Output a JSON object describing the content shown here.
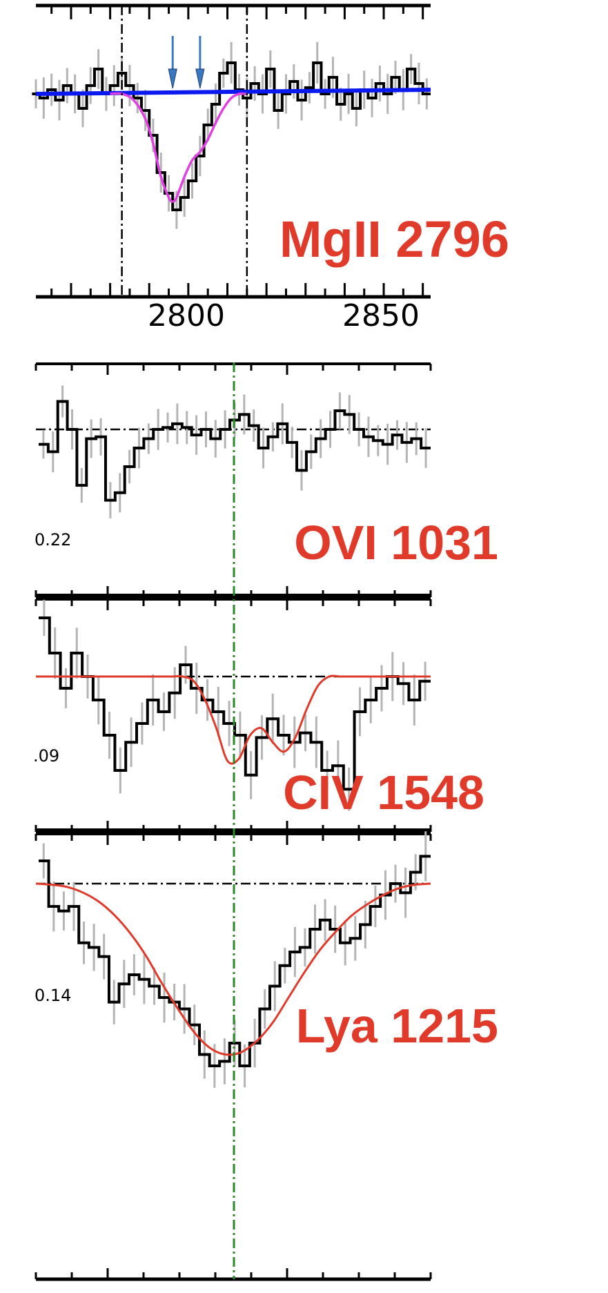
{
  "colors": {
    "label": "#e03a2a",
    "spectrum": "#000000",
    "error": "#b4b4b4",
    "continuum_mg": "#0a1aee",
    "fit_mg": "#e040e0",
    "fit": "#e03a2a",
    "center_line": "#2a8a2a",
    "arrow": "#3a78c0"
  },
  "chart_data": [
    {
      "type": "line",
      "title": "MgII 2796",
      "x_tick_labels": [
        "2800",
        "2850"
      ],
      "xlim": [
        2761,
        2862
      ],
      "x_tick_values": [
        2800,
        2850
      ],
      "bounds_dashdot": [
        2783,
        2815
      ],
      "absorption_arrows": [
        2796,
        2803
      ],
      "continuum": {
        "x": [
          2761,
          2862
        ],
        "y": [
          1.0,
          1.02
        ]
      },
      "series": [
        {
          "role": "flux",
          "x": [
            2761,
            2763,
            2765,
            2767,
            2769,
            2771,
            2773,
            2775,
            2777,
            2779,
            2781,
            2783,
            2785,
            2787,
            2789,
            2791,
            2793,
            2795,
            2797,
            2799,
            2801,
            2803,
            2805,
            2807,
            2809,
            2811,
            2813,
            2815,
            2817,
            2819,
            2821,
            2823,
            2825,
            2827,
            2829,
            2831,
            2833,
            2835,
            2837,
            2839,
            2841,
            2843,
            2845,
            2847,
            2849,
            2851,
            2853,
            2855,
            2857,
            2859,
            2861
          ],
          "y": [
            1.0,
            0.98,
            1.02,
            0.97,
            1.04,
            1.0,
            0.93,
            1.04,
            1.12,
            1.0,
            1.04,
            1.1,
            1.04,
            0.98,
            0.92,
            0.8,
            0.62,
            0.52,
            0.44,
            0.5,
            0.58,
            0.7,
            0.85,
            0.95,
            1.1,
            1.15,
            1.02,
            0.98,
            1.05,
            1.0,
            1.12,
            0.92,
            1.0,
            1.06,
            0.97,
            1.03,
            1.15,
            1.0,
            1.08,
            0.95,
            1.0,
            0.93,
            1.02,
            0.98,
            1.05,
            1.0,
            1.08,
            1.02,
            1.12,
            1.05,
            1.0
          ]
        },
        {
          "role": "fit",
          "x": [
            2780,
            2783,
            2786,
            2789,
            2791,
            2793,
            2795,
            2796,
            2797,
            2799,
            2801,
            2803,
            2805,
            2807,
            2809,
            2811,
            2813,
            2815
          ],
          "y": [
            1.0,
            1.0,
            0.97,
            0.88,
            0.76,
            0.6,
            0.5,
            0.48,
            0.5,
            0.6,
            0.68,
            0.72,
            0.78,
            0.86,
            0.93,
            0.98,
            1.0,
            1.0
          ]
        }
      ]
    },
    {
      "type": "line",
      "title": "OVI 1031",
      "y_tick_label": "0.22",
      "series": [
        {
          "role": "flux",
          "y": [
            0.92,
            0.88,
            1.15,
            1.0,
            0.7,
            0.95,
            0.96,
            0.62,
            0.66,
            0.8,
            0.9,
            0.95,
            1.0,
            1.01,
            1.03,
            1.01,
            0.97,
            1.0,
            0.95,
            1.0,
            1.05,
            1.08,
            1.02,
            0.9,
            0.96,
            1.03,
            0.93,
            0.78,
            0.88,
            0.95,
            1.0,
            1.1,
            1.08,
            1.0,
            0.96,
            0.94,
            0.92,
            0.97,
            0.93,
            0.95,
            0.9
          ]
        }
      ]
    },
    {
      "type": "line",
      "title": "CIV 1548",
      "y_tick_label": ".09",
      "series": [
        {
          "role": "flux",
          "y": [
            1.25,
            1.1,
            0.95,
            1.1,
            1.0,
            0.9,
            0.75,
            0.6,
            0.72,
            0.8,
            0.9,
            0.85,
            0.93,
            1.05,
            0.95,
            0.9,
            0.85,
            0.8,
            0.75,
            0.58,
            0.74,
            0.82,
            0.75,
            0.72,
            0.76,
            0.72,
            0.6,
            0.62,
            0.52,
            0.85,
            0.9,
            0.95,
            1.0,
            0.97,
            0.9,
            0.98
          ]
        },
        {
          "role": "fit",
          "y": [
            1.0,
            1.0,
            1.0,
            1.0,
            1.0,
            1.0,
            1.0,
            1.0,
            1.0,
            1.0,
            1.0,
            1.0,
            1.0,
            1.0,
            0.98,
            0.9,
            0.78,
            0.64,
            0.65,
            0.75,
            0.78,
            0.72,
            0.68,
            0.74,
            0.86,
            0.96,
            1.0,
            1.0,
            1.0,
            1.0,
            1.0,
            1.0,
            1.0,
            1.0,
            1.0,
            1.0
          ]
        }
      ]
    },
    {
      "type": "line",
      "title": "Lya 1215",
      "y_tick_label": "0.14",
      "series": [
        {
          "role": "flux",
          "y": [
            1.1,
            0.9,
            0.88,
            0.9,
            0.74,
            0.72,
            0.68,
            0.48,
            0.56,
            0.6,
            0.58,
            0.55,
            0.5,
            0.48,
            0.45,
            0.38,
            0.25,
            0.2,
            0.22,
            0.3,
            0.2,
            0.3,
            0.45,
            0.55,
            0.64,
            0.7,
            0.72,
            0.8,
            0.84,
            0.8,
            0.74,
            0.76,
            0.82,
            0.9,
            0.95,
            1.0,
            0.96,
            1.05,
            1.12
          ]
        },
        {
          "role": "fit",
          "y": [
            1.0,
            0.995,
            0.985,
            0.96,
            0.92,
            0.86,
            0.78,
            0.68,
            0.56,
            0.45,
            0.35,
            0.28,
            0.25,
            0.26,
            0.31,
            0.39,
            0.5,
            0.61,
            0.71,
            0.79,
            0.86,
            0.91,
            0.95,
            0.98,
            0.995,
            1.0
          ]
        }
      ]
    }
  ]
}
